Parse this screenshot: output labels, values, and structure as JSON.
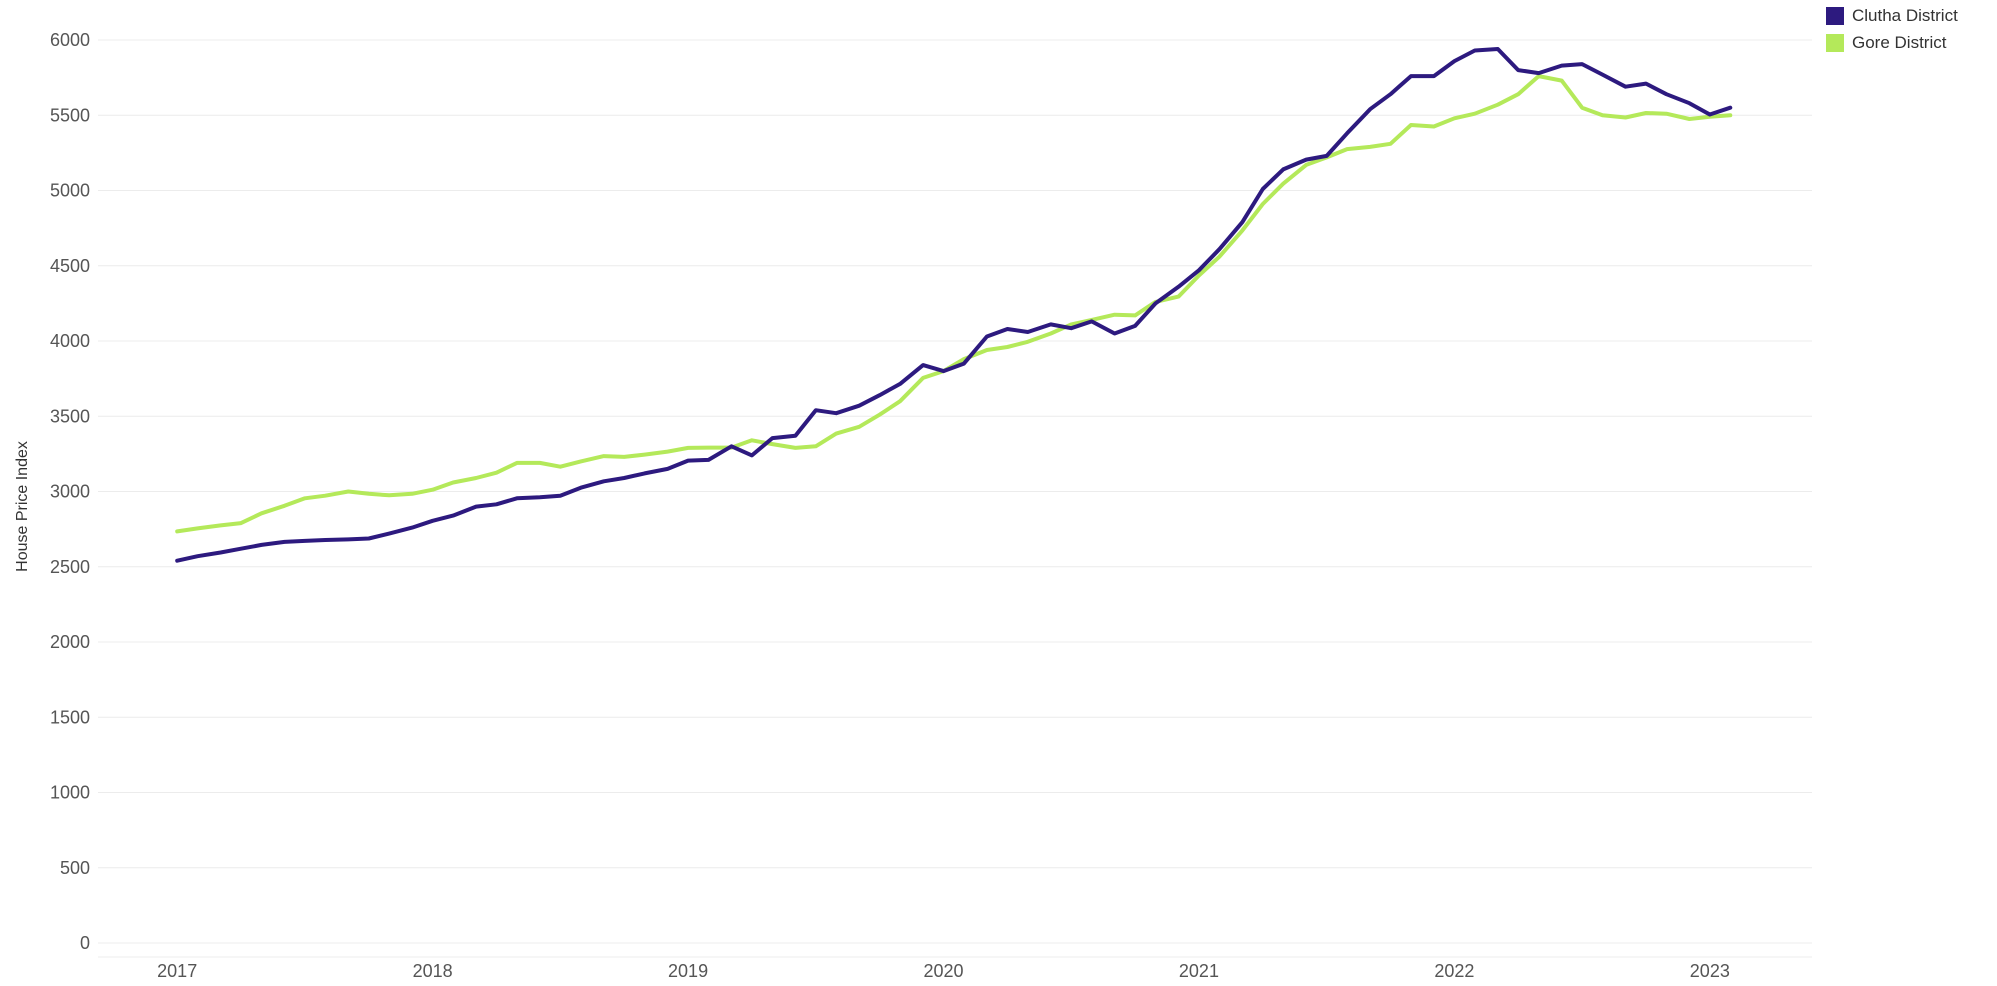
{
  "chart_data": {
    "type": "line",
    "title": "",
    "xlabel": "",
    "ylabel": "House Price Index",
    "ylim": [
      0,
      6000
    ],
    "yticks": [
      "0",
      "500",
      "1000",
      "1500",
      "2000",
      "2500",
      "3000",
      "3500",
      "4000",
      "4500",
      "5000",
      "5500",
      "6000"
    ],
    "xticks": [
      {
        "label": "2017",
        "value": 2017.0
      },
      {
        "label": "2018",
        "value": 2018.0
      },
      {
        "label": "2019",
        "value": 2019.0
      },
      {
        "label": "2020",
        "value": 2020.0
      },
      {
        "label": "2021",
        "value": 2021.0
      },
      {
        "label": "2022",
        "value": 2022.0
      },
      {
        "label": "2023",
        "value": 2023.0
      }
    ],
    "xlim": [
      2016.69,
      2023.4
    ],
    "grid": true,
    "legend_position": "top-right",
    "series": [
      {
        "name": "Clutha District",
        "color": "#2d1a7f",
        "points": [
          [
            2017.0,
            2540
          ],
          [
            2017.08,
            2570
          ],
          [
            2017.17,
            2595
          ],
          [
            2017.25,
            2620
          ],
          [
            2017.33,
            2645
          ],
          [
            2017.42,
            2665
          ],
          [
            2017.5,
            2672
          ],
          [
            2017.58,
            2678
          ],
          [
            2017.67,
            2682
          ],
          [
            2017.75,
            2688
          ],
          [
            2017.83,
            2720
          ],
          [
            2017.92,
            2760
          ],
          [
            2018.0,
            2805
          ],
          [
            2018.08,
            2840
          ],
          [
            2018.17,
            2900
          ],
          [
            2018.25,
            2915
          ],
          [
            2018.33,
            2955
          ],
          [
            2018.42,
            2962
          ],
          [
            2018.5,
            2972
          ],
          [
            2018.58,
            3025
          ],
          [
            2018.67,
            3068
          ],
          [
            2018.75,
            3090
          ],
          [
            2018.83,
            3120
          ],
          [
            2018.92,
            3150
          ],
          [
            2019.0,
            3205
          ],
          [
            2019.08,
            3210
          ],
          [
            2019.17,
            3300
          ],
          [
            2019.25,
            3240
          ],
          [
            2019.33,
            3355
          ],
          [
            2019.42,
            3370
          ],
          [
            2019.5,
            3540
          ],
          [
            2019.58,
            3520
          ],
          [
            2019.67,
            3570
          ],
          [
            2019.75,
            3640
          ],
          [
            2019.83,
            3715
          ],
          [
            2019.92,
            3840
          ],
          [
            2020.0,
            3800
          ],
          [
            2020.08,
            3850
          ],
          [
            2020.17,
            4030
          ],
          [
            2020.25,
            4080
          ],
          [
            2020.33,
            4060
          ],
          [
            2020.42,
            4110
          ],
          [
            2020.5,
            4085
          ],
          [
            2020.58,
            4130
          ],
          [
            2020.67,
            4050
          ],
          [
            2020.75,
            4100
          ],
          [
            2020.83,
            4250
          ],
          [
            2020.92,
            4360
          ],
          [
            2021.0,
            4470
          ],
          [
            2021.08,
            4610
          ],
          [
            2021.17,
            4790
          ],
          [
            2021.25,
            5010
          ],
          [
            2021.33,
            5140
          ],
          [
            2021.42,
            5205
          ],
          [
            2021.5,
            5230
          ],
          [
            2021.58,
            5380
          ],
          [
            2021.67,
            5540
          ],
          [
            2021.75,
            5640
          ],
          [
            2021.83,
            5760
          ],
          [
            2021.92,
            5760
          ],
          [
            2022.0,
            5860
          ],
          [
            2022.08,
            5930
          ],
          [
            2022.17,
            5940
          ],
          [
            2022.25,
            5800
          ],
          [
            2022.33,
            5780
          ],
          [
            2022.42,
            5830
          ],
          [
            2022.5,
            5840
          ],
          [
            2022.58,
            5770
          ],
          [
            2022.67,
            5690
          ],
          [
            2022.75,
            5710
          ],
          [
            2022.83,
            5640
          ],
          [
            2022.92,
            5580
          ],
          [
            2023.0,
            5505
          ],
          [
            2023.08,
            5550
          ]
        ]
      },
      {
        "name": "Gore District",
        "color": "#b4e95a",
        "points": [
          [
            2017.0,
            2735
          ],
          [
            2017.08,
            2755
          ],
          [
            2017.17,
            2775
          ],
          [
            2017.25,
            2790
          ],
          [
            2017.33,
            2855
          ],
          [
            2017.42,
            2905
          ],
          [
            2017.5,
            2955
          ],
          [
            2017.58,
            2972
          ],
          [
            2017.67,
            3000
          ],
          [
            2017.75,
            2985
          ],
          [
            2017.83,
            2975
          ],
          [
            2017.92,
            2985
          ],
          [
            2018.0,
            3012
          ],
          [
            2018.08,
            3060
          ],
          [
            2018.17,
            3090
          ],
          [
            2018.25,
            3125
          ],
          [
            2018.33,
            3190
          ],
          [
            2018.42,
            3190
          ],
          [
            2018.5,
            3165
          ],
          [
            2018.58,
            3200
          ],
          [
            2018.67,
            3235
          ],
          [
            2018.75,
            3230
          ],
          [
            2018.83,
            3245
          ],
          [
            2018.92,
            3265
          ],
          [
            2019.0,
            3290
          ],
          [
            2019.08,
            3292
          ],
          [
            2019.17,
            3292
          ],
          [
            2019.25,
            3340
          ],
          [
            2019.33,
            3315
          ],
          [
            2019.42,
            3290
          ],
          [
            2019.5,
            3300
          ],
          [
            2019.58,
            3385
          ],
          [
            2019.67,
            3430
          ],
          [
            2019.75,
            3510
          ],
          [
            2019.83,
            3600
          ],
          [
            2019.92,
            3755
          ],
          [
            2020.0,
            3800
          ],
          [
            2020.08,
            3880
          ],
          [
            2020.17,
            3940
          ],
          [
            2020.25,
            3960
          ],
          [
            2020.33,
            3995
          ],
          [
            2020.42,
            4050
          ],
          [
            2020.5,
            4110
          ],
          [
            2020.58,
            4140
          ],
          [
            2020.67,
            4175
          ],
          [
            2020.75,
            4170
          ],
          [
            2020.83,
            4260
          ],
          [
            2020.92,
            4295
          ],
          [
            2021.0,
            4435
          ],
          [
            2021.08,
            4560
          ],
          [
            2021.17,
            4735
          ],
          [
            2021.25,
            4910
          ],
          [
            2021.33,
            5045
          ],
          [
            2021.42,
            5170
          ],
          [
            2021.5,
            5220
          ],
          [
            2021.58,
            5275
          ],
          [
            2021.67,
            5290
          ],
          [
            2021.75,
            5310
          ],
          [
            2021.83,
            5435
          ],
          [
            2021.92,
            5425
          ],
          [
            2022.0,
            5480
          ],
          [
            2022.08,
            5510
          ],
          [
            2022.17,
            5570
          ],
          [
            2022.25,
            5640
          ],
          [
            2022.33,
            5760
          ],
          [
            2022.42,
            5730
          ],
          [
            2022.5,
            5550
          ],
          [
            2022.58,
            5500
          ],
          [
            2022.67,
            5485
          ],
          [
            2022.75,
            5515
          ],
          [
            2022.83,
            5510
          ],
          [
            2022.92,
            5475
          ],
          [
            2023.0,
            5490
          ],
          [
            2023.08,
            5500
          ]
        ]
      }
    ]
  }
}
